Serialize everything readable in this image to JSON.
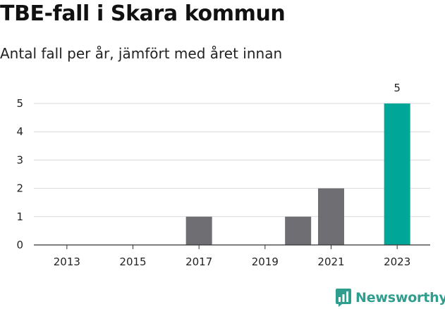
{
  "header": {
    "title": "TBE-fall i Skara kommun",
    "subtitle": "Antal fall per år, jämfört med året innan"
  },
  "brand": {
    "name": "Newsworthy",
    "icon": "newsworthy-logo-icon",
    "color": "#2f9e8e"
  },
  "chart_data": {
    "type": "bar",
    "title": "TBE-fall i Skara kommun",
    "subtitle": "Antal fall per år, jämfört med året innan",
    "xlabel": "",
    "ylabel": "",
    "categories": [
      "2013",
      "2014",
      "2015",
      "2016",
      "2017",
      "2018",
      "2019",
      "2020",
      "2021",
      "2022",
      "2023"
    ],
    "x_tick_labels": [
      "2013",
      "2015",
      "2017",
      "2019",
      "2021",
      "2023"
    ],
    "values": [
      0,
      0,
      0,
      0,
      1,
      0,
      0,
      1,
      2,
      0,
      5
    ],
    "ylim": [
      0,
      5
    ],
    "y_ticks": [
      0,
      1,
      2,
      3,
      4,
      5
    ],
    "grid": true,
    "colors": {
      "default": "#6e6e73",
      "highlight": "#00a698"
    },
    "highlight_category": "2023",
    "data_labels": [
      {
        "category": "2023",
        "text": "5"
      }
    ]
  }
}
